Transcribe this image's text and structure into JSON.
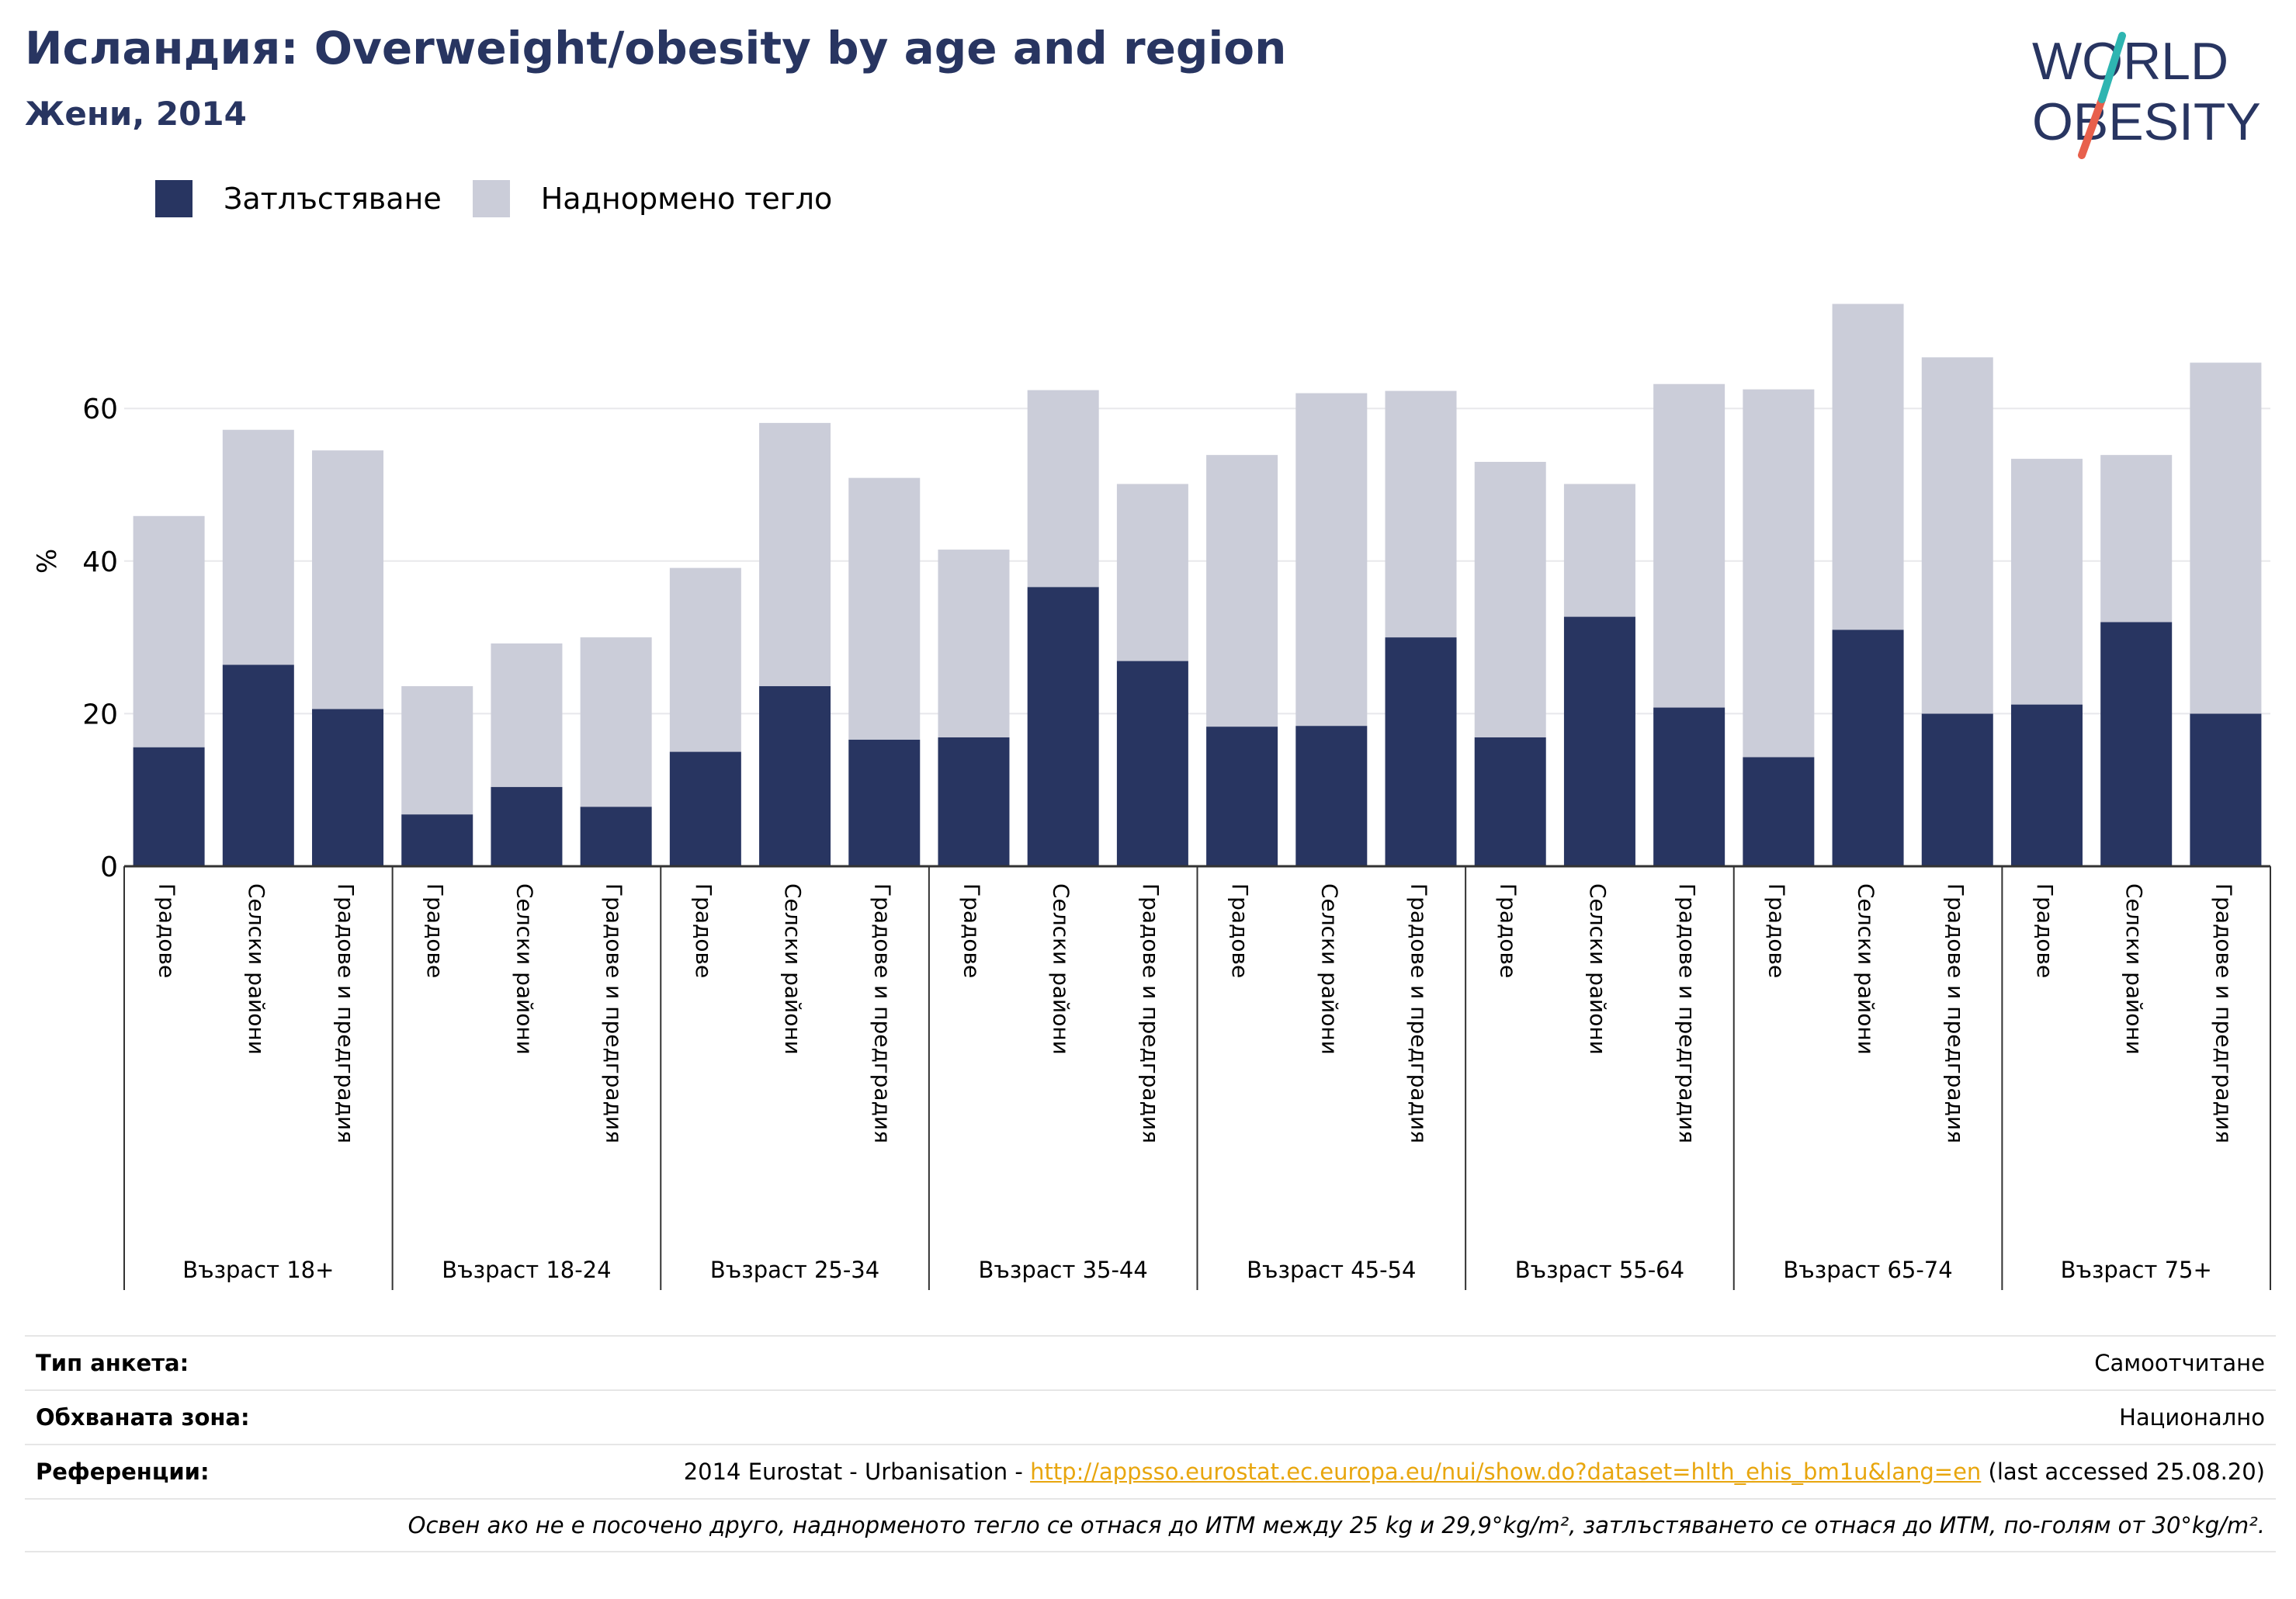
{
  "header": {
    "title": "Исландия: Overweight/obesity by age and region",
    "subtitle": "Жени, 2014"
  },
  "logo": {
    "line1": "WORLD",
    "line2": "OBESITY"
  },
  "colors": {
    "obesity": "#283561",
    "overweight": "#cbcdd9",
    "title": "#283561",
    "link": "#e8a60e"
  },
  "chart_data": {
    "type": "bar",
    "stacked": true,
    "ylabel": "%",
    "ylim": [
      0,
      75
    ],
    "yticks": [
      0,
      20,
      40,
      60
    ],
    "grid": true,
    "legend_position": "top-left",
    "groups": [
      "Възраст 18+",
      "Възраст 18-24",
      "Възраст 25-34",
      "Възраст 35-44",
      "Възраст 45-54",
      "Възраст 55-64",
      "Възраст 65-74",
      "Възраст 75+"
    ],
    "regions": [
      "Градове",
      "Селски райони",
      "Градове и предградия"
    ],
    "series": [
      {
        "name": "Затлъстяване",
        "values": [
          15.6,
          26.4,
          20.6,
          6.8,
          10.4,
          7.8,
          15.0,
          23.6,
          16.6,
          16.9,
          36.6,
          26.9,
          18.3,
          18.4,
          30.0,
          16.9,
          32.7,
          20.8,
          14.3,
          31.0,
          20.0,
          21.2,
          32.0,
          20.0
        ]
      },
      {
        "name": "Наднормено тегло",
        "values": [
          30.3,
          30.8,
          33.9,
          16.8,
          18.8,
          22.2,
          24.1,
          34.5,
          34.3,
          24.6,
          25.8,
          23.2,
          35.6,
          43.6,
          32.3,
          36.1,
          17.4,
          42.4,
          48.2,
          42.7,
          46.7,
          32.2,
          21.9,
          46.0
        ]
      }
    ]
  },
  "info": {
    "survey_type_label": "Тип анкета:",
    "survey_type_value": "Самоотчитане",
    "coverage_label": "Обхваната зона:",
    "coverage_value": "Национално",
    "references_label": "Референции:",
    "references_prefix": "2014 Eurostat - Urbanisation - ",
    "references_link": "http://appsso.eurostat.ec.europa.eu/nui/show.do?dataset=hlth_ehis_bm1u&lang=en",
    "references_suffix": " (last accessed 25.08.20)",
    "note": "Освен ако не е посочено друго, наднорменото тегло се отнася до ИТМ между 25 kg и 29,9°kg/m², затлъстяването се отнася до ИТМ, по-голям от 30°kg/m²."
  }
}
